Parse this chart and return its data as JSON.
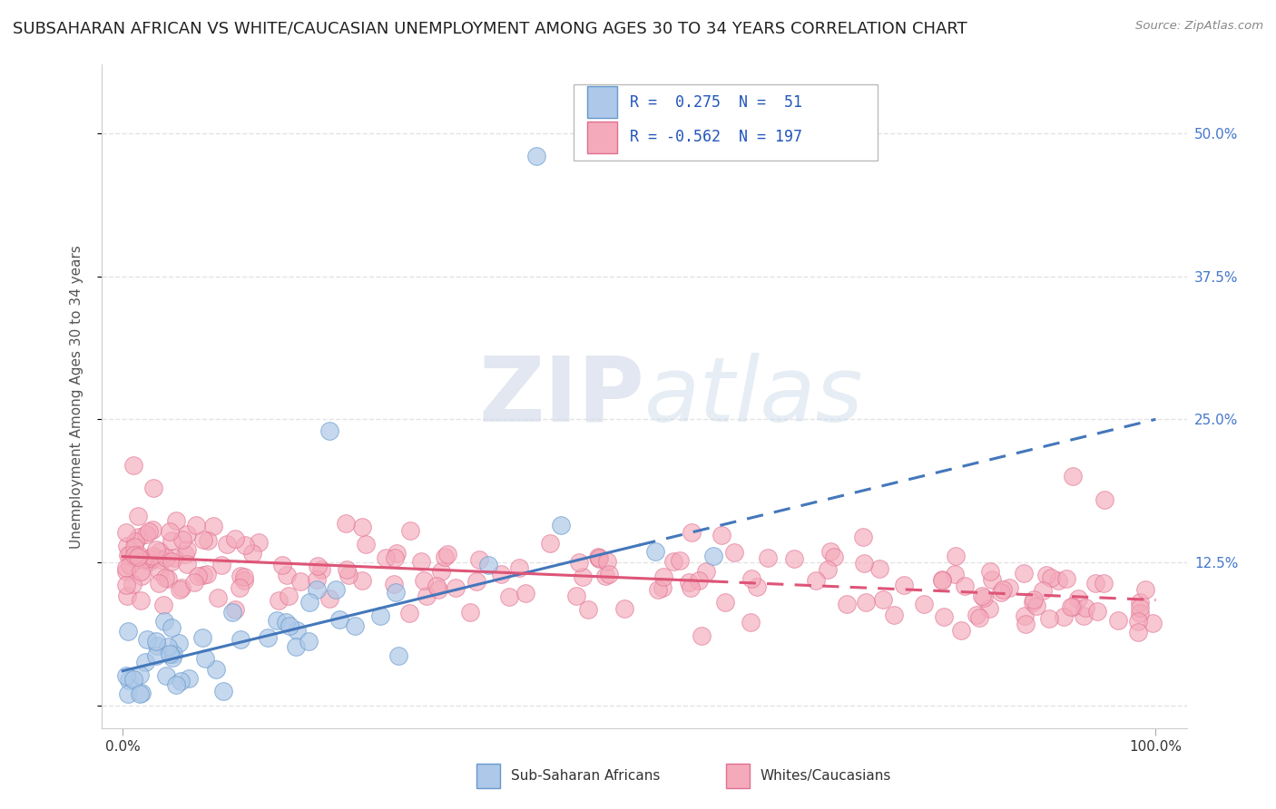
{
  "title": "SUBSAHARAN AFRICAN VS WHITE/CAUCASIAN UNEMPLOYMENT AMONG AGES 30 TO 34 YEARS CORRELATION CHART",
  "source": "Source: ZipAtlas.com",
  "ylabel": "Unemployment Among Ages 30 to 34 years",
  "xlim": [
    -2,
    103
  ],
  "ylim": [
    -2,
    56
  ],
  "ytick_vals": [
    0,
    12.5,
    25.0,
    37.5,
    50.0
  ],
  "ytick_labels": [
    "",
    "12.5%",
    "25.0%",
    "37.5%",
    "50.0%"
  ],
  "xtick_vals": [
    0,
    100
  ],
  "xtick_labels": [
    "0.0%",
    "100.0%"
  ],
  "blue_R": 0.275,
  "blue_N": 51,
  "pink_R": -0.562,
  "pink_N": 197,
  "blue_color": "#adc8e8",
  "pink_color": "#f4aaba",
  "blue_edge_color": "#6699cc",
  "pink_edge_color": "#e07090",
  "blue_line_color": "#4477bb",
  "pink_line_color": "#dd5577",
  "legend_blue_label": "Sub-Saharan Africans",
  "legend_pink_label": "Whites/Caucasians",
  "watermark_zip": "ZIP",
  "watermark_atlas": "atlas",
  "background_color": "#ffffff",
  "grid_color": "#dddddd",
  "title_fontsize": 13,
  "axis_label_fontsize": 11,
  "tick_fontsize": 11,
  "legend_fontsize": 11,
  "blue_trend_intercept": 3.0,
  "blue_trend_slope": 0.22,
  "blue_solid_end": 50,
  "blue_dashed_end": 100,
  "pink_trend_intercept": 13.0,
  "pink_trend_slope": -0.038,
  "pink_solid_end": 57,
  "pink_dashed_end": 100
}
